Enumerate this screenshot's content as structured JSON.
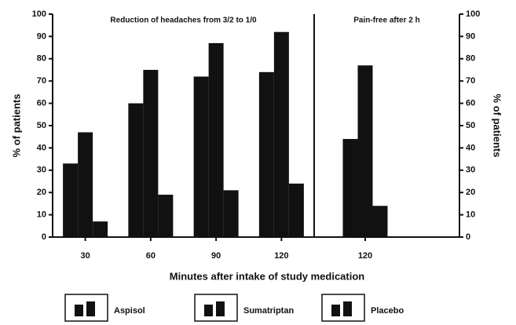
{
  "chart_data": {
    "type": "bar",
    "xlabel": "Minutes after intake of study medication",
    "ylabel": "% of patients",
    "y2label": "% of patients",
    "ylim": [
      0,
      100
    ],
    "yticks": [
      0,
      10,
      20,
      30,
      40,
      50,
      60,
      70,
      80,
      90,
      100
    ],
    "y2lim": [
      0,
      100
    ],
    "y2ticks": [
      0,
      10,
      20,
      30,
      40,
      50,
      60,
      70,
      80,
      90,
      100
    ],
    "series": [
      {
        "name": "Aspisol",
        "color": "#111111"
      },
      {
        "name": "Sumatriptan",
        "color": "#111111"
      },
      {
        "name": "Placebo",
        "color": "#111111"
      }
    ],
    "panels": [
      {
        "title": "Reduction of headaches from 3/2 to 1/0",
        "categories": [
          "30",
          "60",
          "90",
          "120"
        ],
        "series": [
          {
            "values": [
              33,
              60,
              72,
              74
            ]
          },
          {
            "values": [
              47,
              75,
              87,
              92
            ]
          },
          {
            "values": [
              7,
              19,
              21,
              24
            ]
          }
        ]
      },
      {
        "title": "Pain-free after 2 h",
        "categories": [
          "120"
        ],
        "series": [
          {
            "values": [
              44
            ]
          },
          {
            "values": [
              77
            ]
          },
          {
            "values": [
              14
            ]
          }
        ]
      }
    ]
  }
}
